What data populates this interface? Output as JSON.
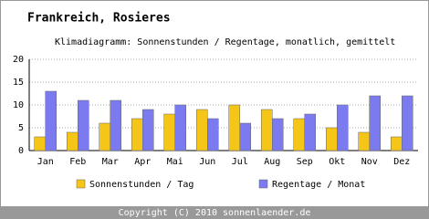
{
  "chart_data": {
    "type": "bar",
    "title": "Frankreich, Rosieres",
    "subtitle": "Klimadiagramm: Sonnenstunden / Regentage, monatlich, gemittelt",
    "categories": [
      "Jan",
      "Feb",
      "Mar",
      "Apr",
      "Mai",
      "Jun",
      "Jul",
      "Aug",
      "Sep",
      "Okt",
      "Nov",
      "Dez"
    ],
    "series": [
      {
        "name": "Sonnenstunden / Tag",
        "color": "#f5c518",
        "values": [
          3,
          4,
          6,
          7,
          8,
          9,
          10,
          9,
          7,
          5,
          4,
          3
        ]
      },
      {
        "name": "Regentage / Monat",
        "color": "#7b7bef",
        "values": [
          13,
          11,
          11,
          9,
          10,
          7,
          6,
          7,
          8,
          10,
          12,
          12
        ]
      }
    ],
    "ylim": [
      0,
      20
    ],
    "yticks": [
      0,
      5,
      10,
      15,
      20
    ],
    "grid": true,
    "footer": "Copyright (C) 2010 sonnenlaender.de"
  }
}
